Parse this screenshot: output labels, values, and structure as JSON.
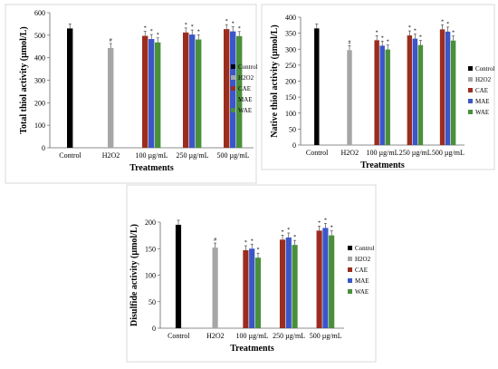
{
  "colors": {
    "Control": "#000000",
    "H2O2": "#a6a6a6",
    "CAE": "#9b2d1f",
    "MAE": "#3a56c8",
    "WAE": "#4a8f3a"
  },
  "chart_data": [
    {
      "type": "bar",
      "xlabel": "Treatments",
      "ylabel": "Total thiol activity (µmol/L)",
      "ylim": [
        0,
        600
      ],
      "yticks": [
        "0",
        "100",
        "200",
        "300",
        "400",
        "500",
        "600"
      ],
      "groups": [
        "Control",
        "H2O2",
        "100 µg/mL",
        "250 µg/mL",
        "500 µg/mL"
      ],
      "legend": [
        "Control",
        "H2O2",
        "CAE",
        "MAE",
        "WAE"
      ],
      "legend_position": "right",
      "series": [
        {
          "name": "Control",
          "values": [
            530,
            null,
            null,
            null,
            null
          ]
        },
        {
          "name": "H2O2",
          "values": [
            null,
            443,
            null,
            null,
            null
          ]
        },
        {
          "name": "CAE",
          "values": [
            null,
            null,
            497,
            512,
            527
          ]
        },
        {
          "name": "MAE",
          "values": [
            null,
            null,
            483,
            503,
            517
          ]
        },
        {
          "name": "WAE",
          "values": [
            null,
            null,
            468,
            481,
            496
          ]
        }
      ],
      "marks": [
        "",
        "#",
        "*",
        "*",
        "*"
      ]
    },
    {
      "type": "bar",
      "xlabel": "Treatments",
      "ylabel": "Native thiol activity (µmol/L)",
      "ylim": [
        0,
        400
      ],
      "yticks": [
        "0",
        "50",
        "100",
        "150",
        "200",
        "250",
        "300",
        "350",
        "400"
      ],
      "groups": [
        "Control",
        "H2O2",
        "100 µg/mL",
        "250 µg/mL",
        "500 µg/mL"
      ],
      "legend": [
        "Control",
        "H2O2",
        "CAE",
        "MAE",
        "WAE"
      ],
      "legend_position": "right",
      "series": [
        {
          "name": "Control",
          "values": [
            365,
            null,
            null,
            null,
            null
          ]
        },
        {
          "name": "H2O2",
          "values": [
            null,
            297,
            null,
            null,
            null
          ]
        },
        {
          "name": "CAE",
          "values": [
            null,
            null,
            328,
            343,
            362
          ]
        },
        {
          "name": "MAE",
          "values": [
            null,
            null,
            311,
            333,
            355
          ]
        },
        {
          "name": "WAE",
          "values": [
            null,
            null,
            299,
            313,
            327
          ]
        }
      ],
      "marks": [
        "",
        "#",
        "*",
        "*",
        "*"
      ]
    },
    {
      "type": "bar",
      "xlabel": "Treatments",
      "ylabel": "Disulfide activity (µmol/L)",
      "ylim": [
        0,
        200
      ],
      "yticks": [
        "0",
        "50",
        "100",
        "150",
        "200"
      ],
      "groups": [
        "Control",
        "H2O2",
        "100 µg/mL",
        "250 µg/mL",
        "500 µg/mL"
      ],
      "legend": [
        "Control",
        "H2O2",
        "CAE",
        "MAE",
        "WAE"
      ],
      "legend_position": "right",
      "series": [
        {
          "name": "Control",
          "values": [
            195,
            null,
            null,
            null,
            null
          ]
        },
        {
          "name": "H2O2",
          "values": [
            null,
            152,
            null,
            null,
            null
          ]
        },
        {
          "name": "CAE",
          "values": [
            null,
            null,
            147,
            167,
            184
          ]
        },
        {
          "name": "MAE",
          "values": [
            null,
            null,
            150,
            171,
            189
          ]
        },
        {
          "name": "WAE",
          "values": [
            null,
            null,
            133,
            157,
            175
          ]
        }
      ],
      "marks": [
        "",
        "#",
        "*",
        "*",
        "*"
      ]
    }
  ]
}
